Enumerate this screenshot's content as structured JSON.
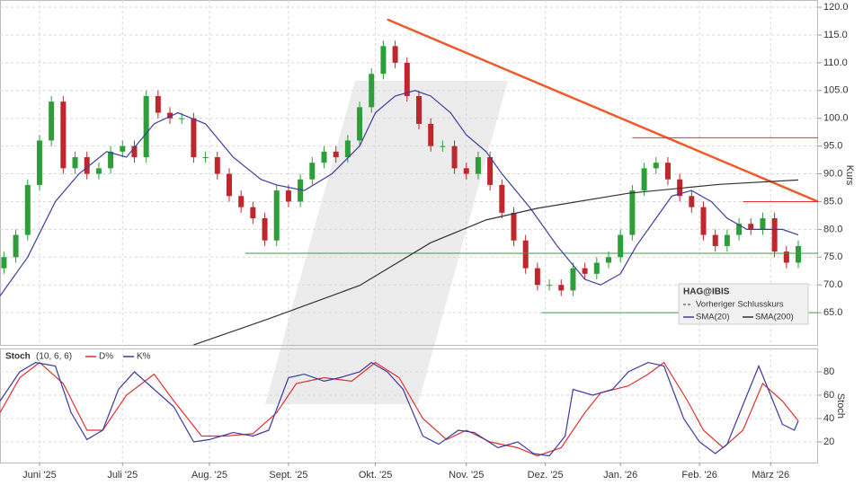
{
  "chart_data": [
    {
      "type": "candlestick",
      "legend_title": "HAG@IBIS",
      "previous_close_label": "Vorheriger Schlusskurs",
      "axis_label": "Kurs",
      "xlim": [
        0,
        207
      ],
      "ylim": [
        59.2,
        121.3
      ],
      "yticks": [
        {
          "value": 65,
          "label": "65.0"
        },
        {
          "value": 70,
          "label": "70.0"
        },
        {
          "value": 75,
          "label": "75.0"
        },
        {
          "value": 80,
          "label": "80.0"
        },
        {
          "value": 85,
          "label": "85.0"
        },
        {
          "value": 90,
          "label": "90.0"
        },
        {
          "value": 95,
          "label": "95.0"
        },
        {
          "value": 100,
          "label": "100.0"
        },
        {
          "value": 105,
          "label": "105.0"
        },
        {
          "value": 110,
          "label": "110.0"
        },
        {
          "value": 115,
          "label": "115.0"
        },
        {
          "value": 120,
          "label": "120.0"
        }
      ],
      "grid": true,
      "up_color": "#2e9e3a",
      "down_color": "#c0272d",
      "x": [
        1,
        4,
        7,
        10,
        13,
        16,
        19,
        22,
        25,
        28,
        31,
        34,
        37,
        40,
        43,
        46,
        49,
        52,
        55,
        58,
        61,
        64,
        67,
        70,
        73,
        76,
        79,
        82,
        85,
        88,
        91,
        94,
        97,
        100,
        103,
        106,
        109,
        112,
        115,
        118,
        121,
        124,
        127,
        130,
        133,
        136,
        139,
        142,
        145,
        148,
        151,
        154,
        157,
        160,
        163,
        166,
        169,
        172,
        175,
        178,
        181,
        184,
        187,
        190,
        193,
        196,
        199,
        202
      ],
      "open": [
        73,
        75,
        79,
        88,
        96,
        103,
        91,
        93,
        90,
        91,
        94,
        95,
        93,
        104,
        101,
        100,
        100,
        93,
        93,
        90,
        86,
        84,
        82,
        78,
        87,
        85,
        89,
        92,
        94,
        93,
        96,
        102,
        108,
        113,
        110,
        104,
        99,
        95,
        95,
        91,
        90,
        93,
        88,
        83,
        78,
        73,
        70,
        70,
        69,
        73,
        72,
        74,
        75,
        79,
        87,
        91,
        92,
        89,
        86,
        84,
        79,
        77,
        79,
        81,
        80,
        82,
        76,
        74
      ],
      "high": [
        76,
        80,
        89,
        97,
        104,
        104,
        94,
        94,
        92,
        95,
        96,
        96,
        105,
        105,
        102,
        101,
        101,
        94,
        94,
        91,
        87,
        85,
        83,
        88,
        88,
        90,
        93,
        95,
        95,
        97,
        103,
        109,
        114,
        114,
        111,
        105,
        100,
        96,
        96,
        92,
        94,
        94,
        89,
        84,
        79,
        74,
        71,
        71,
        74,
        74,
        75,
        76,
        80,
        88,
        92,
        93,
        93,
        90,
        87,
        85,
        80,
        80,
        82,
        82,
        83,
        83,
        77,
        78
      ],
      "low": [
        72,
        74,
        78,
        87,
        95,
        90,
        90,
        89,
        89,
        90,
        93,
        92,
        92,
        100,
        99,
        99,
        92,
        92,
        89,
        85,
        83,
        81,
        77,
        77,
        84,
        84,
        88,
        91,
        92,
        92,
        95,
        101,
        107,
        109,
        103,
        98,
        94,
        94,
        90,
        89,
        89,
        87,
        82,
        77,
        72,
        69,
        69,
        68,
        68,
        71,
        71,
        73,
        74,
        78,
        86,
        90,
        88,
        85,
        83,
        78,
        76,
        76,
        78,
        79,
        79,
        75,
        73,
        73
      ],
      "close": [
        75,
        79,
        88,
        96,
        103,
        91,
        93,
        90,
        91,
        94,
        95,
        93,
        104,
        101,
        100,
        100,
        93,
        93,
        90,
        86,
        84,
        82,
        78,
        87,
        85,
        89,
        92,
        94,
        93,
        96,
        102,
        108,
        113,
        110,
        104,
        99,
        95,
        95,
        91,
        90,
        93,
        88,
        83,
        78,
        73,
        70,
        70,
        69,
        73,
        72,
        74,
        75,
        79,
        87,
        91,
        92,
        89,
        86,
        84,
        79,
        77,
        79,
        81,
        80,
        82,
        76,
        74,
        77
      ],
      "series": [
        {
          "name": "SMA(20)",
          "color": "#3c3ca0",
          "x": [
            0,
            7,
            14,
            20,
            27,
            32,
            39,
            45,
            52,
            59,
            66,
            70,
            77,
            84,
            91,
            95,
            100,
            105,
            109,
            114,
            118,
            123,
            127,
            134,
            141,
            148,
            152,
            157,
            161,
            166,
            170,
            175,
            180,
            184,
            189,
            193,
            198,
            202
          ],
          "values": [
            68,
            75,
            85,
            90,
            94,
            93,
            99,
            101,
            99,
            93,
            89,
            88,
            87,
            90,
            95,
            101,
            104,
            105,
            104,
            101,
            97,
            94,
            90,
            84,
            77,
            71,
            70,
            72,
            77,
            82,
            86,
            87,
            85,
            82,
            80,
            80,
            80,
            79
          ]
        },
        {
          "name": "SMA(200)",
          "color": "#333333",
          "x": [
            49,
            68,
            91,
            109,
            123,
            136,
            159,
            182,
            202
          ],
          "values": [
            59.2,
            63.9,
            69.9,
            77.6,
            81.7,
            83.8,
            86.5,
            88.1,
            88.9
          ]
        }
      ],
      "lines": [
        {
          "color": "#f05a28",
          "x": [
            98,
            207
          ],
          "values": [
            117.8,
            85
          ]
        },
        {
          "color": "#e03030",
          "x": [
            160,
            207
          ],
          "values": [
            96.5,
            96.5
          ]
        },
        {
          "color": "#e03030",
          "x": [
            188,
            207
          ],
          "values": [
            85,
            85
          ]
        },
        {
          "color": "#3aa040",
          "x": [
            62,
            207
          ],
          "values": [
            75.7,
            75.7
          ]
        },
        {
          "color": "#3aa040",
          "x": [
            137,
            207
          ],
          "values": [
            65,
            65
          ]
        }
      ]
    },
    {
      "type": "line",
      "title": "Stoch",
      "params": "(10, 6, 6)",
      "axis_label": "Stoch",
      "xlim": [
        0,
        207
      ],
      "ylim": [
        2.3,
        100
      ],
      "yticks": [
        20,
        40,
        60,
        80
      ],
      "xticks": [
        {
          "value": 10,
          "label": "Juni '25"
        },
        {
          "value": 31,
          "label": "Juli '25"
        },
        {
          "value": 53,
          "label": "Aug. '25"
        },
        {
          "value": 73,
          "label": "Sept. '25"
        },
        {
          "value": 95,
          "label": "Okt. '25"
        },
        {
          "value": 118,
          "label": "Nov. '25"
        },
        {
          "value": 138,
          "label": "Dez. '25"
        },
        {
          "value": 157,
          "label": "Jan. '26"
        },
        {
          "value": 177,
          "label": "Feb. '26"
        },
        {
          "value": 195,
          "label": "März '26"
        }
      ],
      "grid": true,
      "series": [
        {
          "name": "D%",
          "color": "#e03030",
          "x": [
            0,
            5,
            10,
            16,
            22,
            26,
            32,
            39,
            44,
            51,
            57,
            64,
            70,
            75,
            82,
            89,
            95,
            101,
            107,
            113,
            118,
            124,
            131,
            136,
            142,
            148,
            152,
            159,
            164,
            168,
            174,
            178,
            183,
            188,
            193,
            198,
            202
          ],
          "values": [
            45,
            75,
            88,
            70,
            30,
            30,
            60,
            78,
            55,
            25,
            25,
            27,
            45,
            70,
            75,
            72,
            88,
            75,
            40,
            22,
            30,
            20,
            15,
            8,
            15,
            45,
            62,
            68,
            78,
            88,
            55,
            30,
            15,
            30,
            70,
            55,
            38
          ]
        },
        {
          "name": "K%",
          "color": "#3a3aa0",
          "x": [
            0,
            5,
            9,
            14,
            18,
            22,
            26,
            30,
            34,
            39,
            44,
            49,
            53,
            59,
            64,
            68,
            73,
            77,
            82,
            86,
            91,
            94,
            98,
            102,
            107,
            111,
            116,
            120,
            126,
            131,
            135,
            139,
            143,
            145,
            150,
            155,
            159,
            164,
            168,
            173,
            177,
            181,
            184,
            189,
            192,
            195,
            198,
            201,
            202
          ],
          "values": [
            55,
            80,
            88,
            85,
            45,
            22,
            30,
            65,
            80,
            65,
            50,
            20,
            22,
            28,
            25,
            30,
            75,
            78,
            72,
            75,
            80,
            88,
            80,
            65,
            25,
            18,
            30,
            28,
            15,
            20,
            10,
            8,
            25,
            65,
            60,
            65,
            80,
            88,
            85,
            40,
            20,
            10,
            18,
            60,
            85,
            60,
            35,
            30,
            38
          ]
        }
      ]
    }
  ]
}
